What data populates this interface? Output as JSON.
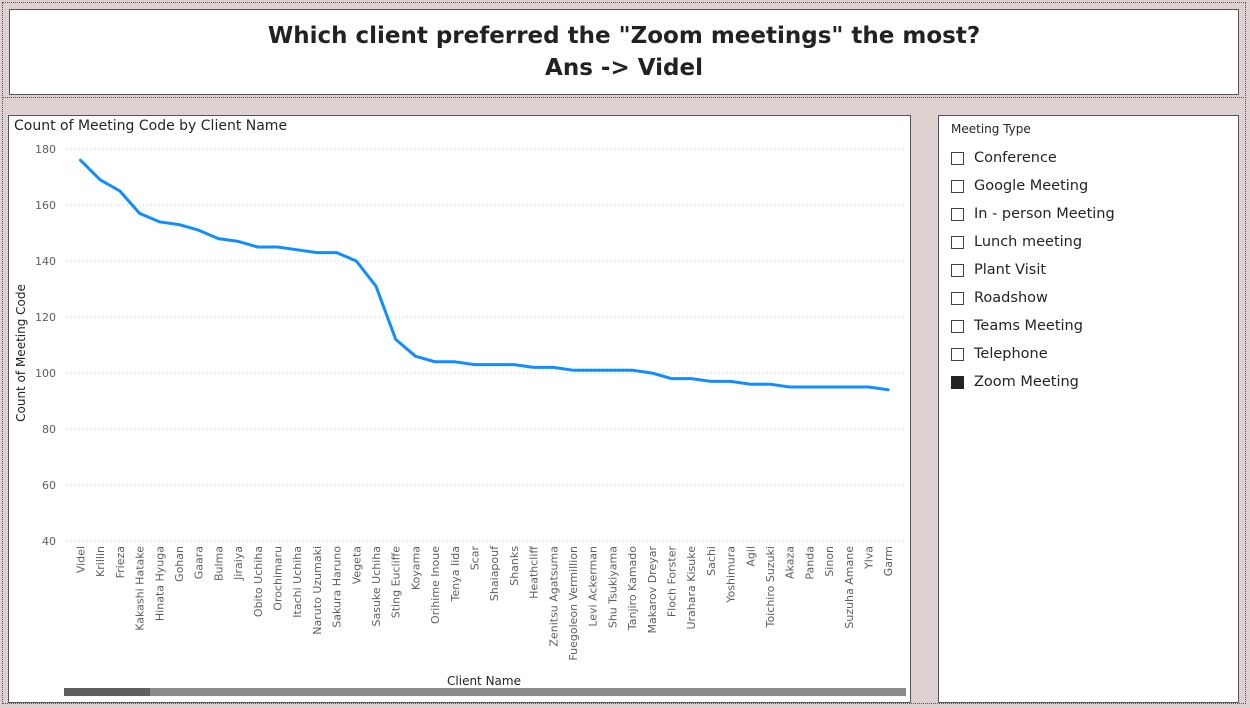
{
  "header": {
    "question": "Which client preferred the \"Zoom meetings\" the most?",
    "answer": "Ans -> Videl"
  },
  "chart_data": {
    "type": "line",
    "title": "Count of Meeting Code by Client Name",
    "xlabel": "Client Name",
    "ylabel": "Count of Meeting Code",
    "ylim": [
      40,
      180
    ],
    "yticks": [
      40,
      60,
      80,
      100,
      120,
      140,
      160,
      180
    ],
    "grid": true,
    "line_color": "#118DFF",
    "categories": [
      "Videl",
      "Krillin",
      "Frieza",
      "Kakashi Hatake",
      "Hinata Hyuga",
      "Gohan",
      "Gaara",
      "Bulma",
      "Jiraiya",
      "Obito Uchiha",
      "Orochimaru",
      "Itachi Uchiha",
      "Naruto Uzumaki",
      "Sakura Haruno",
      "Vegeta",
      "Sasuke Uchiha",
      "Sting Eucliffe",
      "Koyama",
      "Orihime Inoue",
      "Tenya Iida",
      "Scar",
      "Shaiapouf",
      "Shanks",
      "Heathcliff",
      "Zenitsu Agatsuma",
      "Fuegoleon Vermillion",
      "Levi Ackerman",
      "Shu Tsukiyama",
      "Tanjiro Kamado",
      "Makarov Dreyar",
      "Floch Forster",
      "Urahara Kisuke",
      "Sachi",
      "Yoshimura",
      "Agil",
      "Toichiro Suzuki",
      "Akaza",
      "Panda",
      "Sinon",
      "Suzuha Amane",
      "Ylva",
      "Garm"
    ],
    "values": [
      176,
      169,
      165,
      157,
      154,
      153,
      151,
      148,
      147,
      145,
      145,
      144,
      143,
      143,
      140,
      131,
      112,
      106,
      104,
      104,
      103,
      103,
      103,
      102,
      102,
      101,
      101,
      101,
      101,
      100,
      98,
      98,
      97,
      97,
      96,
      96,
      95,
      95,
      95,
      95,
      95,
      94
    ]
  },
  "slicer": {
    "header": "Meeting Type",
    "items": [
      {
        "label": "Conference",
        "checked": false
      },
      {
        "label": "Google Meeting",
        "checked": false
      },
      {
        "label": "In - person Meeting",
        "checked": false
      },
      {
        "label": "Lunch meeting",
        "checked": false
      },
      {
        "label": "Plant Visit",
        "checked": false
      },
      {
        "label": "Roadshow",
        "checked": false
      },
      {
        "label": "Teams Meeting",
        "checked": false
      },
      {
        "label": "Telephone",
        "checked": false
      },
      {
        "label": "Zoom Meeting",
        "checked": true
      }
    ]
  }
}
